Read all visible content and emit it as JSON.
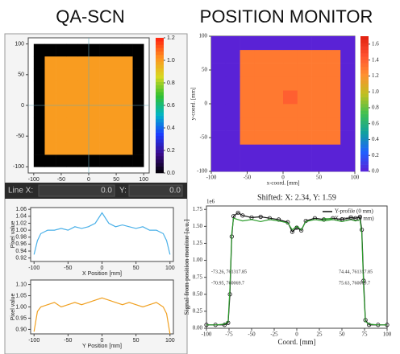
{
  "header": {
    "left_title": "QA-SCN",
    "right_title": "POSITION MONITOR"
  },
  "controls": {
    "line_x_label": "Line X:",
    "line_x_value": "0.0",
    "y_label": "Y:",
    "y_value": "0.0"
  },
  "chart_data": [
    {
      "type": "heatmap",
      "x": [
        -100,
        -80,
        -60,
        -40,
        -20,
        0,
        20,
        40,
        60,
        80,
        100
      ],
      "y": [
        -100,
        -80,
        -60,
        -40,
        -20,
        0,
        20,
        40,
        60,
        80,
        100
      ],
      "z": [
        [
          0,
          0,
          0,
          0,
          0,
          0,
          0,
          0,
          0,
          0
        ],
        [
          0,
          1,
          1,
          1,
          1,
          1,
          1,
          1,
          1,
          0
        ],
        [
          0,
          1,
          1,
          1,
          1,
          1,
          1,
          1,
          1,
          0
        ],
        [
          0,
          1,
          1,
          1,
          1,
          1,
          1,
          1,
          1,
          0
        ],
        [
          0,
          1,
          1,
          1,
          1,
          1,
          1,
          1,
          1,
          0
        ],
        [
          0,
          1,
          1,
          1,
          1,
          1,
          1,
          1,
          1,
          0
        ],
        [
          0,
          1,
          1,
          1,
          1,
          1,
          1,
          1,
          1,
          0
        ],
        [
          0,
          1,
          1,
          1,
          1,
          1,
          1,
          1,
          1,
          0
        ],
        [
          0,
          1,
          1,
          1,
          1,
          1,
          1,
          1,
          1,
          0
        ],
        [
          0,
          0,
          0,
          0,
          0,
          0,
          0,
          0,
          0,
          0
        ]
      ],
      "xlim": [
        -110,
        110
      ],
      "ylim": [
        -110,
        110
      ],
      "xticks": [
        -100,
        -50,
        0,
        50,
        100
      ],
      "yticks": [
        -100,
        -50,
        0,
        50,
        100
      ],
      "clim": [
        0,
        1.2
      ],
      "cticks": [
        {
          "value": 0,
          "label": "0.0"
        },
        {
          "value": 0.2,
          "label": "0.2"
        },
        {
          "value": 0.4,
          "label": "0.4"
        },
        {
          "value": 0.6,
          "label": "0.6"
        },
        {
          "value": 0.8,
          "label": "0.8"
        },
        {
          "value": 1,
          "label": "1.0"
        },
        {
          "value": 1.2,
          "label": "1.2"
        }
      ],
      "colormap": [
        "#000000",
        "#3b0a8c",
        "#1b3cff",
        "#00b4c8",
        "#30c030",
        "#d8d820",
        "#ff9020",
        "#ff2010"
      ]
    },
    {
      "type": "heatmap",
      "xlabel": "x-coord. [mm]",
      "ylabel": "y-coord. [mm]",
      "x": [
        -100,
        -80,
        -60,
        -40,
        -20,
        0,
        20,
        40,
        60,
        80,
        100
      ],
      "y": [
        -100,
        -80,
        -60,
        -40,
        -20,
        0,
        20,
        40,
        60,
        80,
        100
      ],
      "z": [
        [
          0,
          0,
          0,
          0,
          0,
          0,
          0,
          0,
          0,
          0
        ],
        [
          0,
          0,
          0,
          0,
          0,
          0,
          0,
          0,
          0,
          0
        ],
        [
          0,
          0,
          1.3,
          1.3,
          1.3,
          1.3,
          1.3,
          1.3,
          1.3,
          0
        ],
        [
          0,
          0,
          1.3,
          1.3,
          1.3,
          1.3,
          1.3,
          1.3,
          1.3,
          0
        ],
        [
          0,
          0,
          1.3,
          1.3,
          1.3,
          1.3,
          1.3,
          1.3,
          1.3,
          0
        ],
        [
          0,
          0,
          1.3,
          1.3,
          1.3,
          1.4,
          1.3,
          1.3,
          1.3,
          0
        ],
        [
          0,
          0,
          1.3,
          1.3,
          1.3,
          1.3,
          1.3,
          1.3,
          1.3,
          0
        ],
        [
          0,
          0,
          1.3,
          1.3,
          1.3,
          1.3,
          1.3,
          1.3,
          1.3,
          0
        ],
        [
          0,
          0,
          1.3,
          1.3,
          1.3,
          1.3,
          1.3,
          1.3,
          1.3,
          0
        ],
        [
          0,
          0,
          0,
          0,
          0,
          0,
          0,
          0,
          0,
          0
        ]
      ],
      "xlim": [
        -100,
        100
      ],
      "ylim": [
        -100,
        100
      ],
      "xticks": [
        -100,
        -50,
        0,
        50,
        100
      ],
      "yticks": [
        -100,
        -50,
        0,
        50,
        100
      ],
      "clim": [
        0,
        1.7
      ],
      "cticks": [
        {
          "value": 0,
          "label": "0.0"
        },
        {
          "value": 0.2,
          "label": "0.2"
        },
        {
          "value": 0.4,
          "label": "0.4"
        },
        {
          "value": 0.6,
          "label": "0.6"
        },
        {
          "value": 0.8,
          "label": "0.8"
        },
        {
          "value": 1,
          "label": "1.0"
        },
        {
          "value": 1.2,
          "label": "1.2"
        },
        {
          "value": 1.4,
          "label": "1.4"
        },
        {
          "value": 1.6,
          "label": "1.6"
        }
      ],
      "colormap": [
        "#5a22d6",
        "#2060ff",
        "#10a0a0",
        "#40c050",
        "#c0c020",
        "#ff9030",
        "#ff5030",
        "#e02010"
      ]
    },
    {
      "type": "line",
      "xlabel": "X Position [mm]",
      "ylabel": "Pixel value",
      "color": "#4ab0e8",
      "x": [
        -100,
        -95,
        -90,
        -80,
        -70,
        -60,
        -50,
        -40,
        -30,
        -20,
        -10,
        0,
        10,
        20,
        30,
        40,
        50,
        60,
        70,
        80,
        90,
        95,
        100
      ],
      "values": [
        0.93,
        0.97,
        0.99,
        1.0,
        1.0,
        1.005,
        1.0,
        1.01,
        1.005,
        1.01,
        1.02,
        1.05,
        1.02,
        1.01,
        1.015,
        1.01,
        1.005,
        1.01,
        1.0,
        1.0,
        0.99,
        0.97,
        0.93
      ],
      "xlim": [
        -105,
        105
      ],
      "ylim": [
        0.91,
        1.065
      ],
      "xticks": [
        -100,
        -50,
        0,
        50,
        100
      ],
      "yticks": [
        0.92,
        0.94,
        0.96,
        0.98,
        {
          "value": 1,
          "label": "1.00"
        },
        1.02,
        1.04,
        1.06
      ]
    },
    {
      "type": "line",
      "xlabel": "Y Position [mm]",
      "ylabel": "Pixel value",
      "color": "#f0a020",
      "x": [
        -100,
        -95,
        -90,
        -80,
        -70,
        -60,
        -50,
        -40,
        -30,
        -20,
        -10,
        0,
        10,
        20,
        30,
        40,
        50,
        60,
        70,
        80,
        90,
        95,
        100
      ],
      "values": [
        0.89,
        0.98,
        1.0,
        1.01,
        1.02,
        1.0,
        1.01,
        1.02,
        1.01,
        1.02,
        1.03,
        1.04,
        1.03,
        1.02,
        1.01,
        1.02,
        1.01,
        1.0,
        1.01,
        1.02,
        1.0,
        0.97,
        0.88
      ],
      "xlim": [
        -105,
        105
      ],
      "ylim": [
        0.88,
        1.12
      ],
      "xticks": [
        -100,
        -50,
        0,
        50,
        100
      ],
      "yticks": [
        {
          "value": 0.9,
          "label": "0.90"
        },
        0.95,
        {
          "value": 1,
          "label": "1.00"
        },
        1.05,
        {
          "value": 1.1,
          "label": "1.10"
        }
      ]
    },
    {
      "type": "line",
      "title": "Shifted: X: 2.34, Y: 1.59",
      "xlabel": "Coord. [mm]",
      "ylabel": "Signal from position monitor [a.u.]",
      "offset_label": "1e6",
      "x": [
        -100,
        -90,
        -80,
        -76,
        -74,
        -72,
        -70,
        -65,
        -60,
        -50,
        -40,
        -30,
        -20,
        -10,
        -5,
        0,
        5,
        10,
        20,
        30,
        40,
        50,
        60,
        65,
        70,
        72,
        74,
        76,
        80,
        90,
        100
      ],
      "series": [
        {
          "name": "Y-profile (0 mm)",
          "color": "#111111",
          "marker": "circle",
          "values": [
            0.05,
            0.05,
            0.05,
            0.08,
            0.5,
            1.35,
            1.65,
            1.7,
            1.66,
            1.63,
            1.64,
            1.62,
            1.6,
            1.56,
            1.42,
            1.48,
            1.44,
            1.58,
            1.62,
            1.6,
            1.62,
            1.6,
            1.63,
            1.62,
            1.64,
            1.45,
            0.7,
            0.12,
            0.05,
            0.05,
            0.05
          ]
        },
        {
          "name": "X-profile (0 mm)",
          "color": "#2e9e2e",
          "values": [
            0.05,
            0.05,
            0.06,
            0.1,
            0.6,
            1.4,
            1.62,
            1.6,
            1.58,
            1.6,
            1.57,
            1.6,
            1.58,
            1.55,
            1.45,
            1.5,
            1.45,
            1.57,
            1.6,
            1.58,
            1.6,
            1.57,
            1.6,
            1.58,
            1.6,
            1.4,
            0.6,
            0.1,
            0.06,
            0.05,
            0.05
          ]
        }
      ],
      "annotations": [
        "-73.26, 761317.85",
        "-70.95, 760069.7",
        "74.44, 761317.85",
        "75.63, 760069.7"
      ],
      "xlim": [
        -100,
        100
      ],
      "ylim": [
        0,
        1.8
      ],
      "xticks": [
        -100,
        -75,
        -50,
        -25,
        0,
        25,
        50,
        75,
        100
      ],
      "yticks": [
        {
          "value": 0,
          "label": "0.00"
        },
        0.25,
        {
          "value": 0.5,
          "label": "0.50"
        },
        0.75,
        {
          "value": 1,
          "label": "1.00"
        },
        1.25,
        {
          "value": 1.5,
          "label": "1.50"
        },
        1.75
      ],
      "legend": "upper right"
    }
  ]
}
